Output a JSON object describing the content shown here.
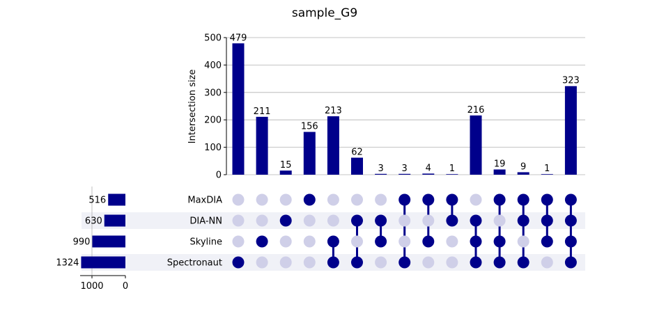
{
  "chart_data": {
    "type": "upset",
    "title": "sample_G9",
    "ylabel": "Intersection size",
    "ylim": [
      0,
      500
    ],
    "yticks": [
      0,
      100,
      200,
      300,
      400,
      500
    ],
    "sets": [
      {
        "name": "MaxDIA",
        "size": 516
      },
      {
        "name": "DIA-NN",
        "size": 630
      },
      {
        "name": "Skyline",
        "size": 990
      },
      {
        "name": "Spectronaut",
        "size": 1324
      }
    ],
    "set_size_ticks": [
      1000,
      0
    ],
    "intersections": [
      {
        "members": [
          "Spectronaut"
        ],
        "size": 479
      },
      {
        "members": [
          "Skyline"
        ],
        "size": 211
      },
      {
        "members": [
          "DIA-NN"
        ],
        "size": 15
      },
      {
        "members": [
          "MaxDIA"
        ],
        "size": 156
      },
      {
        "members": [
          "Skyline",
          "Spectronaut"
        ],
        "size": 213
      },
      {
        "members": [
          "DIA-NN",
          "Spectronaut"
        ],
        "size": 62
      },
      {
        "members": [
          "DIA-NN",
          "Skyline"
        ],
        "size": 3
      },
      {
        "members": [
          "MaxDIA",
          "Spectronaut"
        ],
        "size": 3
      },
      {
        "members": [
          "MaxDIA",
          "Skyline"
        ],
        "size": 4
      },
      {
        "members": [
          "MaxDIA",
          "DIA-NN"
        ],
        "size": 1
      },
      {
        "members": [
          "DIA-NN",
          "Skyline",
          "Spectronaut"
        ],
        "size": 216
      },
      {
        "members": [
          "MaxDIA",
          "Skyline",
          "Spectronaut"
        ],
        "size": 19
      },
      {
        "members": [
          "MaxDIA",
          "DIA-NN",
          "Spectronaut"
        ],
        "size": 9
      },
      {
        "members": [
          "MaxDIA",
          "DIA-NN",
          "Skyline"
        ],
        "size": 1
      },
      {
        "members": [
          "MaxDIA",
          "DIA-NN",
          "Skyline",
          "Spectronaut"
        ],
        "size": 323
      }
    ],
    "grid": true,
    "colors": {
      "bar": "#00008b",
      "active_dot": "#00008b",
      "inactive_dot": "#cfcfe8",
      "row_shade": "#f0f1f7",
      "grid": "#b0b0b0",
      "axis": "#000000"
    }
  }
}
